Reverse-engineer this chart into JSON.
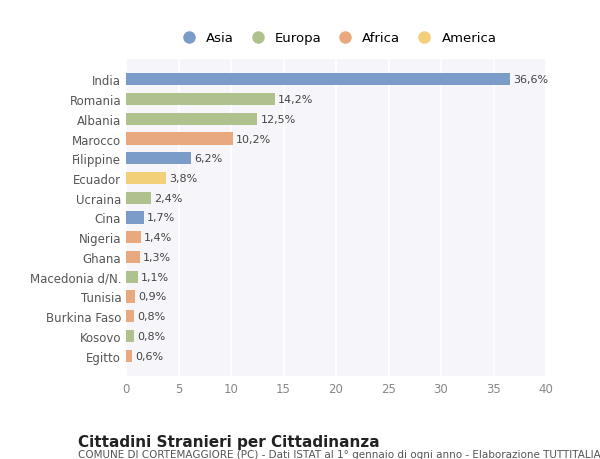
{
  "countries": [
    "India",
    "Romania",
    "Albania",
    "Marocco",
    "Filippine",
    "Ecuador",
    "Ucraina",
    "Cina",
    "Nigeria",
    "Ghana",
    "Macedonia d/N.",
    "Tunisia",
    "Burkina Faso",
    "Kosovo",
    "Egitto"
  ],
  "values": [
    36.6,
    14.2,
    12.5,
    10.2,
    6.2,
    3.8,
    2.4,
    1.7,
    1.4,
    1.3,
    1.1,
    0.9,
    0.8,
    0.8,
    0.6
  ],
  "labels": [
    "36,6%",
    "14,2%",
    "12,5%",
    "10,2%",
    "6,2%",
    "3,8%",
    "2,4%",
    "1,7%",
    "1,4%",
    "1,3%",
    "1,1%",
    "0,9%",
    "0,8%",
    "0,8%",
    "0,6%"
  ],
  "continents": [
    "Asia",
    "Europa",
    "Europa",
    "Africa",
    "Asia",
    "America",
    "Europa",
    "Asia",
    "Africa",
    "Africa",
    "Europa",
    "Africa",
    "Africa",
    "Europa",
    "Africa"
  ],
  "colors": {
    "Asia": "#7b9cc8",
    "Europa": "#afc18d",
    "Africa": "#e8a97e",
    "America": "#f2d07a"
  },
  "legend_order": [
    "Asia",
    "Europa",
    "Africa",
    "America"
  ],
  "title": "Cittadini Stranieri per Cittadinanza",
  "subtitle": "COMUNE DI CORTEMAGGIORE (PC) - Dati ISTAT al 1° gennaio di ogni anno - Elaborazione TUTTITALIA.IT",
  "xlim": [
    0,
    40
  ],
  "xticks": [
    0,
    5,
    10,
    15,
    20,
    25,
    30,
    35,
    40
  ],
  "plot_bg_color": "#f5f5fa",
  "fig_bg_color": "#ffffff",
  "grid_color": "#ffffff",
  "bar_height": 0.62,
  "title_fontsize": 11,
  "subtitle_fontsize": 7.5,
  "label_fontsize": 8,
  "tick_fontsize": 8.5,
  "legend_fontsize": 9.5
}
